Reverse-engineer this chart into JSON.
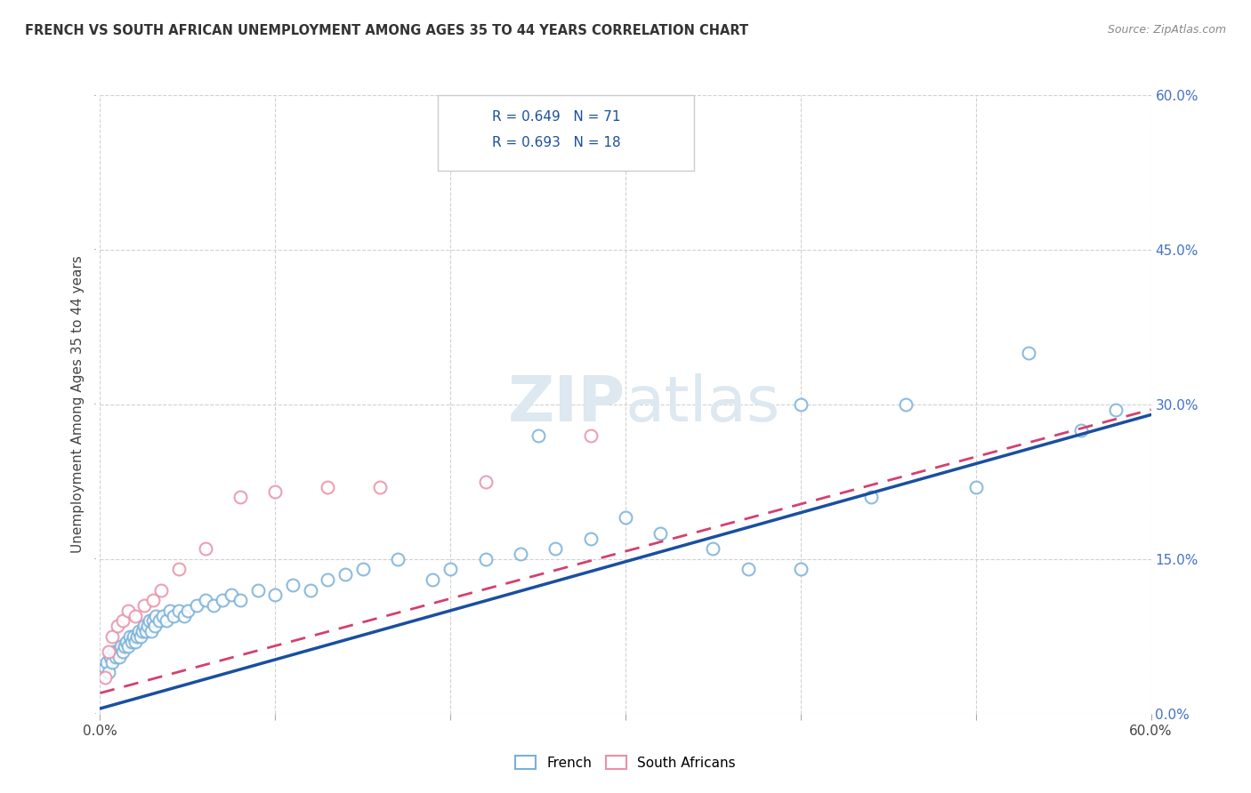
{
  "title": "FRENCH VS SOUTH AFRICAN UNEMPLOYMENT AMONG AGES 35 TO 44 YEARS CORRELATION CHART",
  "source": "Source: ZipAtlas.com",
  "ylabel": "Unemployment Among Ages 35 to 44 years",
  "legend_french": "French",
  "legend_sa": "South Africans",
  "french_color": "#a8c8e8",
  "french_edge_color": "#7ab0d8",
  "sa_color": "#f4b8c8",
  "sa_edge_color": "#e890a8",
  "french_line_color": "#1a4fa0",
  "sa_line_color": "#d44070",
  "watermark_color": "#dde8f0",
  "background_color": "#ffffff",
  "grid_color": "#cccccc",
  "xlim": [
    0,
    60
  ],
  "ylim": [
    0,
    60
  ],
  "french_x": [
    0.3,
    0.4,
    0.5,
    0.6,
    0.7,
    0.8,
    0.9,
    1.0,
    1.1,
    1.2,
    1.3,
    1.4,
    1.5,
    1.6,
    1.7,
    1.8,
    1.9,
    2.0,
    2.1,
    2.2,
    2.3,
    2.4,
    2.5,
    2.6,
    2.7,
    2.8,
    2.9,
    3.0,
    3.1,
    3.2,
    3.4,
    3.6,
    3.8,
    4.0,
    4.2,
    4.5,
    4.8,
    5.0,
    5.5,
    6.0,
    6.5,
    7.0,
    7.5,
    8.0,
    9.0,
    10.0,
    11.0,
    12.0,
    13.0,
    14.0,
    15.0,
    17.0,
    19.0,
    20.0,
    22.0,
    24.0,
    26.0,
    28.0,
    30.0,
    32.0,
    35.0,
    37.0,
    40.0,
    44.0,
    46.0,
    50.0,
    53.0,
    56.0,
    58.0,
    40.0,
    25.0
  ],
  "french_y": [
    4.5,
    5.0,
    4.0,
    5.5,
    5.0,
    6.0,
    5.5,
    6.0,
    5.5,
    6.5,
    6.0,
    6.5,
    7.0,
    6.5,
    7.5,
    7.0,
    7.5,
    7.0,
    7.5,
    8.0,
    7.5,
    8.0,
    8.5,
    8.0,
    8.5,
    9.0,
    8.0,
    9.0,
    8.5,
    9.5,
    9.0,
    9.5,
    9.0,
    10.0,
    9.5,
    10.0,
    9.5,
    10.0,
    10.5,
    11.0,
    10.5,
    11.0,
    11.5,
    11.0,
    12.0,
    11.5,
    12.5,
    12.0,
    13.0,
    13.5,
    14.0,
    15.0,
    13.0,
    14.0,
    15.0,
    15.5,
    16.0,
    17.0,
    19.0,
    17.5,
    16.0,
    14.0,
    30.0,
    21.0,
    30.0,
    22.0,
    35.0,
    27.5,
    29.5,
    14.0,
    27.0
  ],
  "sa_x": [
    0.3,
    0.5,
    0.7,
    1.0,
    1.3,
    1.6,
    2.0,
    2.5,
    3.0,
    3.5,
    4.5,
    6.0,
    8.0,
    10.0,
    13.0,
    16.0,
    22.0,
    28.0
  ],
  "sa_y": [
    3.5,
    6.0,
    7.5,
    8.5,
    9.0,
    10.0,
    9.5,
    10.5,
    11.0,
    12.0,
    14.0,
    16.0,
    21.0,
    21.5,
    22.0,
    22.0,
    22.5,
    27.0
  ],
  "french_line_x0": 0,
  "french_line_x1": 60,
  "french_line_y0": 0.5,
  "french_line_y1": 29.0,
  "sa_line_x0": 0,
  "sa_line_x1": 60,
  "sa_line_y0": 2.0,
  "sa_line_y1": 29.5
}
